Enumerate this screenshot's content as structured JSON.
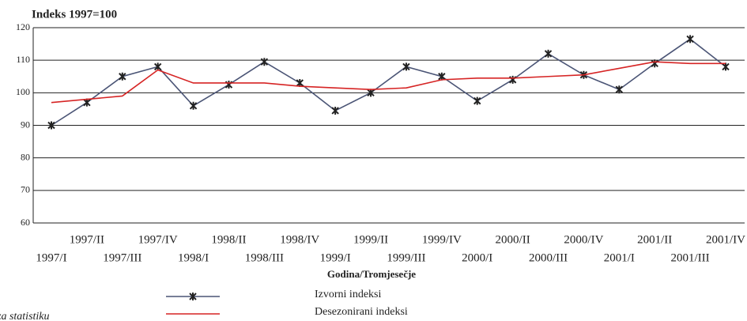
{
  "chart_data": {
    "type": "line",
    "title": "Indeks 1997=100",
    "x_label": "Godina/Tromjesečje",
    "source": "za statistiku",
    "categories": [
      "1997/I",
      "1997/II",
      "1997/III",
      "1997/IV",
      "1998/I",
      "1998/II",
      "1998/III",
      "1998/IV",
      "1999/I",
      "1999/II",
      "1999/III",
      "1999/IV",
      "2000/I",
      "2000/II",
      "2000/III",
      "2000/IV",
      "2001/I",
      "2001/II",
      "2001/III",
      "2001/IV"
    ],
    "series": [
      {
        "name": "Izvorni indeksi",
        "color": "#4a5475",
        "marker": true,
        "values": [
          90,
          97,
          105,
          108,
          96,
          102.5,
          109.5,
          103,
          94.5,
          100,
          108,
          105,
          97.5,
          104,
          112,
          105.5,
          101,
          109,
          116.5,
          108
        ]
      },
      {
        "name": "Desezonirani indeksi",
        "color": "#d62424",
        "marker": false,
        "values": [
          97,
          98,
          99,
          107,
          103,
          103,
          103,
          102,
          101.5,
          101,
          101.5,
          104,
          104.5,
          104.5,
          105,
          105.5,
          107.5,
          109.5,
          109,
          109
        ]
      }
    ],
    "ylim": [
      60,
      120
    ],
    "yticks": [
      60,
      70,
      80,
      90,
      100,
      110,
      120
    ],
    "grid": true
  }
}
